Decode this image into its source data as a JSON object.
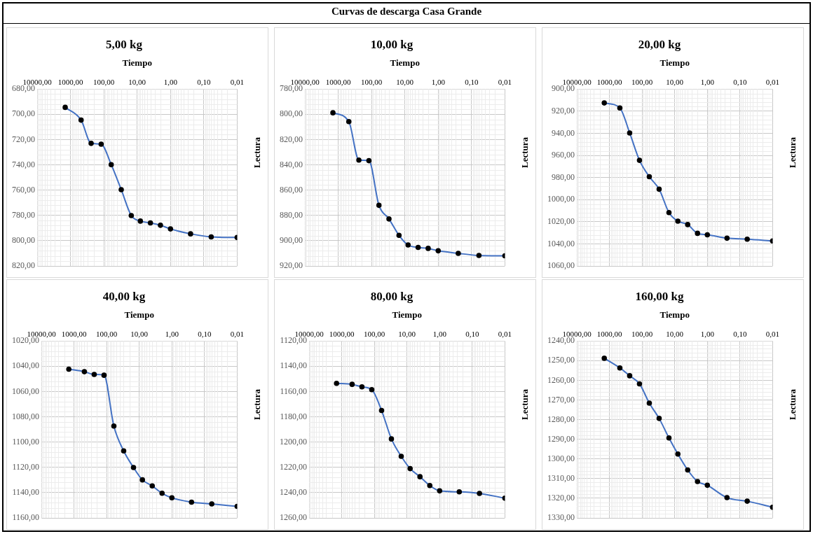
{
  "chart_data": [
    {
      "type": "other",
      "title": "Curvas de descarga Casa Grande"
    },
    {
      "type": "line",
      "title": "5,00 kg",
      "xlabel": "Tiempo",
      "ylabel": "Lectura",
      "log": "x",
      "grid": true,
      "legend": false,
      "marker": "circle",
      "line_style": "solid",
      "x": [
        1440,
        480,
        240,
        120,
        60,
        30,
        15,
        8,
        4,
        2,
        1,
        0.25,
        0.06,
        0.01
      ],
      "xlim": [
        10000,
        0.01
      ],
      "xticks": [
        {
          "value": 10000,
          "label": "10000,00"
        },
        {
          "value": 1000,
          "label": "1000,00"
        },
        {
          "value": 100,
          "label": "100,00"
        },
        {
          "value": 10,
          "label": "10,00"
        },
        {
          "value": 1,
          "label": "1,00"
        },
        {
          "value": 0.1,
          "label": "0,10"
        },
        {
          "value": 0.01,
          "label": "0,01"
        }
      ],
      "ylim": [
        820,
        680
      ],
      "yticks": [
        {
          "value": 680,
          "label": "680,00"
        },
        {
          "value": 700,
          "label": "700,00"
        },
        {
          "value": 720,
          "label": "720,00"
        },
        {
          "value": 740,
          "label": "740,00"
        },
        {
          "value": 760,
          "label": "760,00"
        },
        {
          "value": 780,
          "label": "780,00"
        },
        {
          "value": 800,
          "label": "800,00"
        },
        {
          "value": 820,
          "label": "820,00"
        }
      ],
      "series": [
        {
          "color": "#4472c4",
          "values": [
            694.5,
            704.6,
            723,
            723.6,
            739.8,
            759.6,
            780.1,
            784.5,
            785.9,
            787.8,
            790.7,
            794.6,
            797,
            797.5
          ]
        }
      ]
    },
    {
      "type": "line",
      "title": "10,00 kg",
      "xlabel": "Tiempo",
      "ylabel": "Lectura",
      "log": "x",
      "grid": true,
      "legend": false,
      "marker": "circle",
      "line_style": "solid",
      "x": [
        1440,
        480,
        240,
        120,
        60,
        30,
        15,
        8,
        4,
        2,
        1,
        0.25,
        0.06,
        0.01
      ],
      "xlim": [
        10000,
        0.01
      ],
      "xticks": [
        {
          "value": 10000,
          "label": "10000,00"
        },
        {
          "value": 1000,
          "label": "1000,00"
        },
        {
          "value": 100,
          "label": "100,00"
        },
        {
          "value": 10,
          "label": "10,00"
        },
        {
          "value": 1,
          "label": "1,00"
        },
        {
          "value": 0.1,
          "label": "0,10"
        },
        {
          "value": 0.01,
          "label": "0,01"
        }
      ],
      "ylim": [
        920,
        780
      ],
      "yticks": [
        {
          "value": 780,
          "label": "780,00"
        },
        {
          "value": 800,
          "label": "800,00"
        },
        {
          "value": 820,
          "label": "820,00"
        },
        {
          "value": 840,
          "label": "840,00"
        },
        {
          "value": 860,
          "label": "860,00"
        },
        {
          "value": 880,
          "label": "880,00"
        },
        {
          "value": 900,
          "label": "900,00"
        },
        {
          "value": 920,
          "label": "920,00"
        }
      ],
      "series": [
        {
          "color": "#4472c4",
          "values": [
            798.8,
            805.8,
            836.2,
            836.7,
            872,
            882.8,
            895.8,
            903.4,
            905.3,
            906.1,
            908,
            910,
            911.7,
            912
          ]
        }
      ]
    },
    {
      "type": "line",
      "title": "20,00 kg",
      "xlabel": "Tiempo",
      "ylabel": "Lectura",
      "log": "x",
      "grid": true,
      "legend": false,
      "marker": "circle",
      "line_style": "solid",
      "x": [
        1440,
        480,
        240,
        120,
        60,
        30,
        15,
        8,
        4,
        2,
        1,
        0.25,
        0.06,
        0.01
      ],
      "xlim": [
        10000,
        0.01
      ],
      "xticks": [
        {
          "value": 10000,
          "label": "10000,00"
        },
        {
          "value": 1000,
          "label": "1000,00"
        },
        {
          "value": 100,
          "label": "100,00"
        },
        {
          "value": 10,
          "label": "10,00"
        },
        {
          "value": 1,
          "label": "1,00"
        },
        {
          "value": 0.1,
          "label": "0,10"
        },
        {
          "value": 0.01,
          "label": "0,01"
        }
      ],
      "ylim": [
        1060,
        900
      ],
      "yticks": [
        {
          "value": 900,
          "label": "900,00"
        },
        {
          "value": 920,
          "label": "920,00"
        },
        {
          "value": 940,
          "label": "940,00"
        },
        {
          "value": 960,
          "label": "960,00"
        },
        {
          "value": 980,
          "label": "980,00"
        },
        {
          "value": 1000,
          "label": "1000,00"
        },
        {
          "value": 1020,
          "label": "1020,00"
        },
        {
          "value": 1040,
          "label": "1040,00"
        },
        {
          "value": 1060,
          "label": "1060,00"
        }
      ],
      "series": [
        {
          "color": "#4472c4",
          "values": [
            912.6,
            917.1,
            939.7,
            964.5,
            979.3,
            990.6,
            1011.7,
            1019.5,
            1022.6,
            1030.5,
            1031.8,
            1034.9,
            1035.8,
            1037.4
          ]
        }
      ]
    },
    {
      "type": "line",
      "title": "40,00 kg",
      "xlabel": "Tiempo",
      "ylabel": "Lectura",
      "log": "x",
      "grid": true,
      "legend": false,
      "marker": "circle",
      "line_style": "solid",
      "x": [
        1440,
        480,
        240,
        120,
        60,
        30,
        15,
        8,
        4,
        2,
        1,
        0.25,
        0.06,
        0.01
      ],
      "xlim": [
        10000,
        0.01
      ],
      "xticks": [
        {
          "value": 10000,
          "label": "10000,00"
        },
        {
          "value": 1000,
          "label": "1000,00"
        },
        {
          "value": 100,
          "label": "100,00"
        },
        {
          "value": 10,
          "label": "10,00"
        },
        {
          "value": 1,
          "label": "1,00"
        },
        {
          "value": 0.1,
          "label": "0,10"
        },
        {
          "value": 0.01,
          "label": "0,01"
        }
      ],
      "ylim": [
        1160,
        1020
      ],
      "yticks": [
        {
          "value": 1020,
          "label": "1020,00"
        },
        {
          "value": 1040,
          "label": "1040,00"
        },
        {
          "value": 1060,
          "label": "1060,00"
        },
        {
          "value": 1080,
          "label": "1080,00"
        },
        {
          "value": 1100,
          "label": "1100,00"
        },
        {
          "value": 1120,
          "label": "1120,00"
        },
        {
          "value": 1140,
          "label": "1140,00"
        },
        {
          "value": 1160,
          "label": "1160,00"
        }
      ],
      "series": [
        {
          "color": "#4472c4",
          "values": [
            1042.3,
            1044.3,
            1046.5,
            1047.1,
            1087.3,
            1107,
            1120.1,
            1129.9,
            1134.7,
            1140.5,
            1144.1,
            1147.5,
            1148.9,
            1150.9
          ]
        }
      ]
    },
    {
      "type": "line",
      "title": "80,00 kg",
      "xlabel": "Tiempo",
      "ylabel": "Lectura",
      "log": "x",
      "grid": true,
      "legend": false,
      "marker": "circle",
      "line_style": "solid",
      "x": [
        1440,
        480,
        240,
        120,
        60,
        30,
        15,
        8,
        4,
        2,
        1,
        0.25,
        0.06,
        0.01
      ],
      "xlim": [
        10000,
        0.01
      ],
      "xticks": [
        {
          "value": 10000,
          "label": "10000,00"
        },
        {
          "value": 1000,
          "label": "1000,00"
        },
        {
          "value": 100,
          "label": "100,00"
        },
        {
          "value": 10,
          "label": "10,00"
        },
        {
          "value": 1,
          "label": "1,00"
        },
        {
          "value": 0.1,
          "label": "0,10"
        },
        {
          "value": 0.01,
          "label": "0,01"
        }
      ],
      "ylim": [
        1260,
        1120
      ],
      "yticks": [
        {
          "value": 1120,
          "label": "1120,00"
        },
        {
          "value": 1140,
          "label": "1140,00"
        },
        {
          "value": 1160,
          "label": "1160,00"
        },
        {
          "value": 1180,
          "label": "1180,00"
        },
        {
          "value": 1200,
          "label": "1200,00"
        },
        {
          "value": 1220,
          "label": "1220,00"
        },
        {
          "value": 1240,
          "label": "1240,00"
        },
        {
          "value": 1260,
          "label": "1260,00"
        }
      ],
      "series": [
        {
          "color": "#4472c4",
          "values": [
            1153.5,
            1154.3,
            1156.3,
            1158.5,
            1175,
            1197.5,
            1211.3,
            1221,
            1227.4,
            1234.4,
            1238.6,
            1239.4,
            1240.6,
            1244.4
          ]
        }
      ]
    },
    {
      "type": "line",
      "title": "160,00 kg",
      "xlabel": "Tiempo",
      "ylabel": "Lectura",
      "log": "x",
      "grid": true,
      "legend": false,
      "marker": "circle",
      "line_style": "solid",
      "x": [
        1440,
        480,
        240,
        120,
        60,
        30,
        15,
        8,
        4,
        2,
        1,
        0.25,
        0.06,
        0.01
      ],
      "xlim": [
        10000,
        0.01
      ],
      "xticks": [
        {
          "value": 10000,
          "label": "10000,00"
        },
        {
          "value": 1000,
          "label": "1000,00"
        },
        {
          "value": 100,
          "label": "100,00"
        },
        {
          "value": 10,
          "label": "10,00"
        },
        {
          "value": 1,
          "label": "1,00"
        },
        {
          "value": 0.1,
          "label": "0,10"
        },
        {
          "value": 0.01,
          "label": "0,01"
        }
      ],
      "ylim": [
        1330,
        1240
      ],
      "yticks": [
        {
          "value": 1240,
          "label": "1240,00"
        },
        {
          "value": 1250,
          "label": "1250,00"
        },
        {
          "value": 1260,
          "label": "1260,00"
        },
        {
          "value": 1270,
          "label": "1270,00"
        },
        {
          "value": 1280,
          "label": "1280,00"
        },
        {
          "value": 1290,
          "label": "1290,00"
        },
        {
          "value": 1300,
          "label": "1300,00"
        },
        {
          "value": 1310,
          "label": "1310,00"
        },
        {
          "value": 1320,
          "label": "1320,00"
        },
        {
          "value": 1330,
          "label": "1330,00"
        }
      ],
      "series": [
        {
          "color": "#4472c4",
          "values": [
            1248.8,
            1253.7,
            1257.7,
            1261.8,
            1271.6,
            1279.4,
            1289.3,
            1297.5,
            1305.6,
            1311.5,
            1313.4,
            1319.7,
            1321.5,
            1324.6
          ]
        }
      ]
    }
  ]
}
